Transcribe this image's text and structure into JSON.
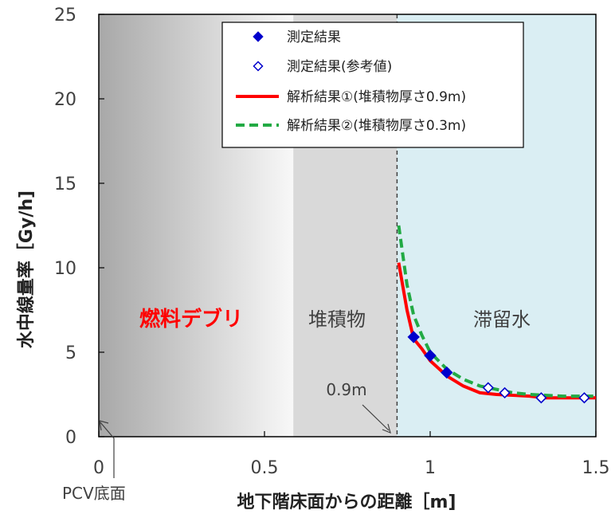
{
  "chart_data": {
    "type": "line",
    "xlabel": "地下階床面からの距離［m]",
    "ylabel": "水中線量率［Gy/h]",
    "xlim": [
      0,
      1.5
    ],
    "ylim": [
      0,
      25
    ],
    "x_ticks": [
      "0",
      "0.5",
      "1",
      "1.5"
    ],
    "y_ticks": [
      "0",
      "5",
      "10",
      "15",
      "20",
      "25"
    ],
    "regions": [
      {
        "label": "燃料デブリ",
        "from": 0,
        "to": 0.587,
        "color": "#a8a8a8",
        "color_end": "#f8f8f8"
      },
      {
        "label": "堆積物",
        "from": 0.587,
        "to": 0.9,
        "color": "#d9d9d9"
      },
      {
        "label": "滞留水",
        "from": 0.9,
        "to": 1.5,
        "color": "#daeef3"
      }
    ],
    "annotations": {
      "boundary": {
        "label": "0.9m",
        "x": 0.9
      },
      "origin": {
        "label": "PCV底面",
        "x": 0
      }
    },
    "series": [
      {
        "name": "測定結果",
        "kind": "marker",
        "marker": "filled-diamond",
        "color": "#0000cc",
        "x": [
          0.95,
          1.0,
          1.05
        ],
        "y": [
          5.9,
          4.8,
          3.8
        ]
      },
      {
        "name": "測定結果(参考値)",
        "kind": "marker",
        "marker": "open-diamond",
        "color": "#0000cc",
        "x": [
          1.175,
          1.225,
          1.335,
          1.465
        ],
        "y": [
          2.9,
          2.6,
          2.3,
          2.3
        ]
      },
      {
        "name": "解析結果①(堆積物厚さ0.9m)",
        "kind": "line",
        "dash": "solid",
        "color": "#ff0000",
        "x": [
          0.905,
          0.93,
          0.95,
          0.975,
          1.0,
          1.05,
          1.1,
          1.15,
          1.2,
          1.25,
          1.3,
          1.35,
          1.4,
          1.45,
          1.5
        ],
        "y": [
          10.3,
          7.5,
          5.8,
          5.2,
          4.5,
          3.6,
          3.0,
          2.6,
          2.5,
          2.45,
          2.4,
          2.3,
          2.3,
          2.3,
          2.3
        ]
      },
      {
        "name": "解析結果②(堆積物厚さ0.3m)",
        "kind": "line",
        "dash": "dashed",
        "color": "#22aa44",
        "x": [
          0.905,
          0.93,
          0.95,
          0.975,
          1.0,
          1.05,
          1.1,
          1.15,
          1.2,
          1.25,
          1.3,
          1.35,
          1.4,
          1.45,
          1.5
        ],
        "y": [
          12.5,
          9.0,
          7.2,
          6.0,
          5.0,
          4.0,
          3.4,
          3.0,
          2.8,
          2.6,
          2.5,
          2.45,
          2.4,
          2.4,
          2.4
        ]
      }
    ]
  }
}
